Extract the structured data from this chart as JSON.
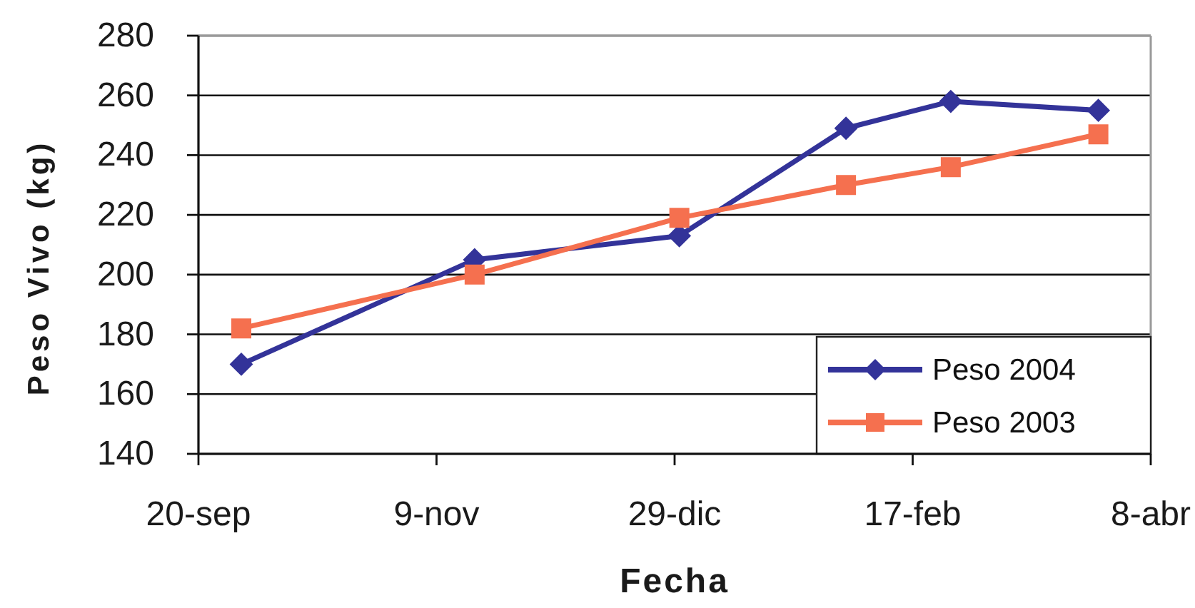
{
  "chart_data": {
    "type": "line",
    "xlabel": "Fecha",
    "ylabel": "Peso Vivo (kg)",
    "x": [
      "2002-09-29",
      "2002-11-17",
      "2002-12-30",
      "2003-02-03",
      "2003-02-25",
      "2003-03-28"
    ],
    "series": [
      {
        "name": "Peso 2004",
        "color": "#333399",
        "marker": "diamond",
        "values": [
          170,
          205,
          213,
          249,
          258,
          255
        ]
      },
      {
        "name": "Peso 2003",
        "color": "#f5704f",
        "marker": "square",
        "values": [
          182,
          200,
          219,
          230,
          236,
          247
        ]
      }
    ],
    "xlim": [
      "2002-09-20",
      "2003-04-08"
    ],
    "xticks": [
      {
        "value": "2002-09-20",
        "label": "20-sep"
      },
      {
        "value": "2002-11-09",
        "label": "9-nov"
      },
      {
        "value": "2002-12-29",
        "label": "29-dic"
      },
      {
        "value": "2003-02-17",
        "label": "17-feb"
      },
      {
        "value": "2003-04-08",
        "label": "8-abr"
      }
    ],
    "ylim": [
      140,
      280
    ],
    "yticks": [
      140,
      160,
      180,
      200,
      220,
      240,
      260,
      280
    ],
    "grid": "y",
    "legend": "bottom right",
    "line_style": "solid"
  }
}
